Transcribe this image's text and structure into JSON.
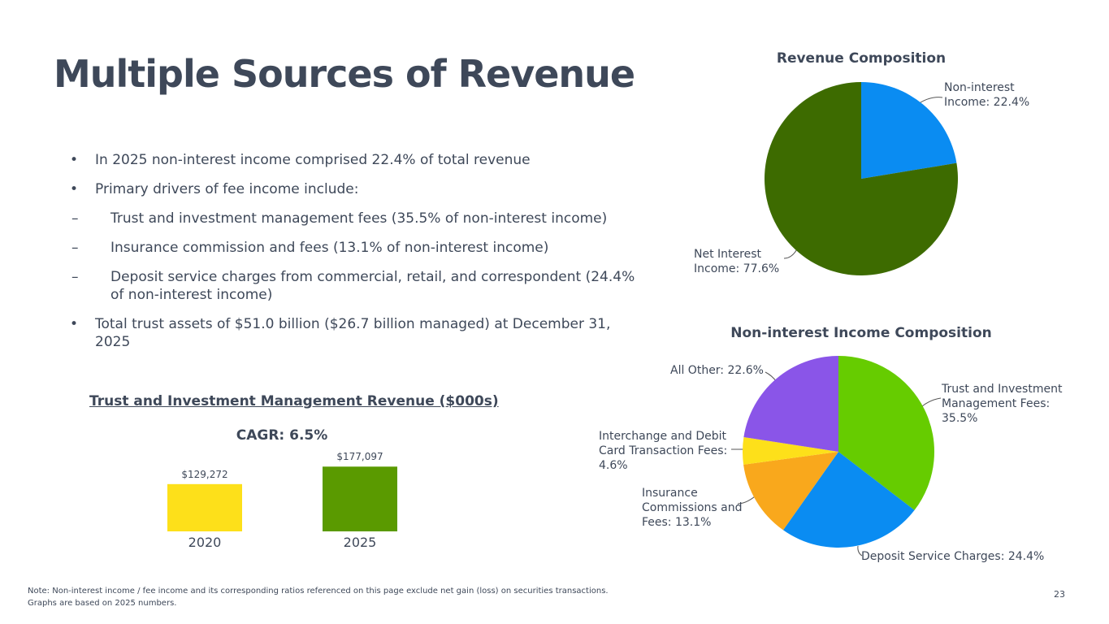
{
  "title": "Multiple Sources of Revenue",
  "bullets": [
    {
      "text": "In 2025 non-interest income comprised 22.4% of total revenue"
    },
    {
      "text": "Primary drivers of fee income include:",
      "items": [
        "Trust and investment management fees (35.5% of non-interest income)",
        "Insurance commission and fees (13.1% of non-interest income)",
        "Deposit service charges from commercial, retail, and correspondent (24.4% of non-interest income)"
      ]
    },
    {
      "text": "Total trust assets of $51.0 billion ($26.7 billion managed)  at December 31, 2025"
    }
  ],
  "note": [
    "Note: Non-interest income / fee income and its corresponding ratios referenced on this page exclude net gain (loss) on securities transactions.",
    "Graphs are based on 2025 numbers."
  ],
  "page_number": "23",
  "chart_data": [
    {
      "type": "pie",
      "title": "Revenue Composition",
      "values": [
        22.4,
        77.6
      ],
      "value_labels": [
        "Non-interest Income: 22.4%",
        "Net Interest Income: 77.6%"
      ],
      "colors": [
        "#0a8cf2",
        "#3d6b00"
      ]
    },
    {
      "type": "pie",
      "title": "Non-interest Income Composition",
      "values": [
        35.5,
        24.4,
        13.1,
        4.6,
        22.6
      ],
      "value_labels": [
        "Trust and Investment Management Fees: 35.5%",
        "Deposit Service Charges: 24.4%",
        "Insurance Commissions and Fees: 13.1%",
        "Interchange and Debit Card Transaction Fees: 4.6%",
        "All Other: 22.6%"
      ],
      "colors": [
        "#66cc00",
        "#0a8cf2",
        "#f9a81c",
        "#fde01a",
        "#8a55e8"
      ]
    },
    {
      "type": "bar",
      "title": "Trust and Investment Management Revenue ($000s)",
      "subtitle": "CAGR: 6.5%",
      "categories": [
        "2020",
        "2025"
      ],
      "values": [
        129272,
        177097
      ],
      "value_labels": [
        "$129,272",
        "$177,097"
      ],
      "colors": [
        "#fde01a",
        "#5a9a00"
      ]
    }
  ]
}
